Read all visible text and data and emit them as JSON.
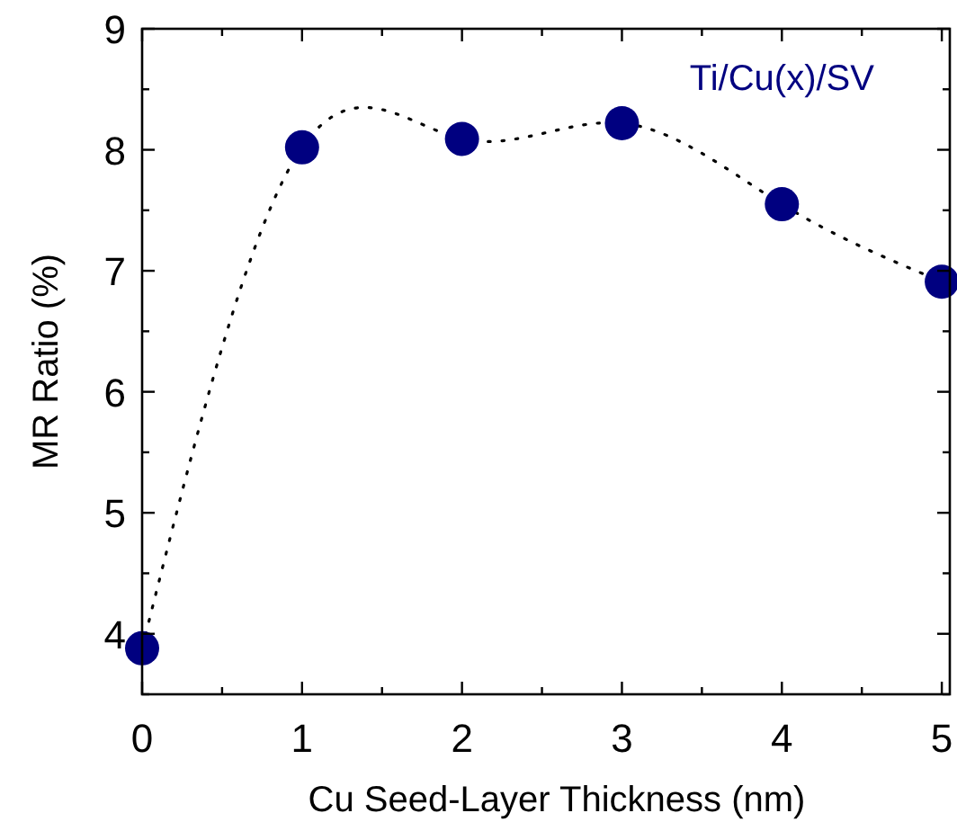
{
  "chart_data": {
    "type": "line",
    "xlabel": "Cu Seed-Layer Thickness (nm)",
    "ylabel": "MR Ratio (%)",
    "x": [
      0,
      1,
      2,
      3,
      4,
      5
    ],
    "series": [
      {
        "name": "Ti/Cu(x)/SV",
        "color": "#000080",
        "values": [
          3.88,
          8.02,
          8.09,
          8.22,
          7.55,
          6.91
        ]
      }
    ],
    "xlim": [
      0,
      5.05
    ],
    "ylim": [
      3.5,
      9
    ],
    "xticks": [
      0,
      {
        "value": 0.5,
        "label": null
      },
      1,
      {
        "value": 1.5,
        "label": null
      },
      2,
      {
        "value": 2.5,
        "label": null
      },
      3,
      {
        "value": 3.5,
        "label": null
      },
      4,
      {
        "value": 4.5,
        "label": null
      },
      5
    ],
    "yticks": [
      {
        "value": 3.5,
        "label": null
      },
      4,
      {
        "value": 4.5,
        "label": null
      },
      5,
      {
        "value": 5.5,
        "label": null
      },
      6,
      {
        "value": 6.5,
        "label": null
      },
      7,
      {
        "value": 7.5,
        "label": null
      },
      8,
      {
        "value": 8.5,
        "label": null
      },
      9
    ],
    "marker": "circle",
    "line_style": "dotted",
    "grid": false,
    "legend": "top right"
  }
}
